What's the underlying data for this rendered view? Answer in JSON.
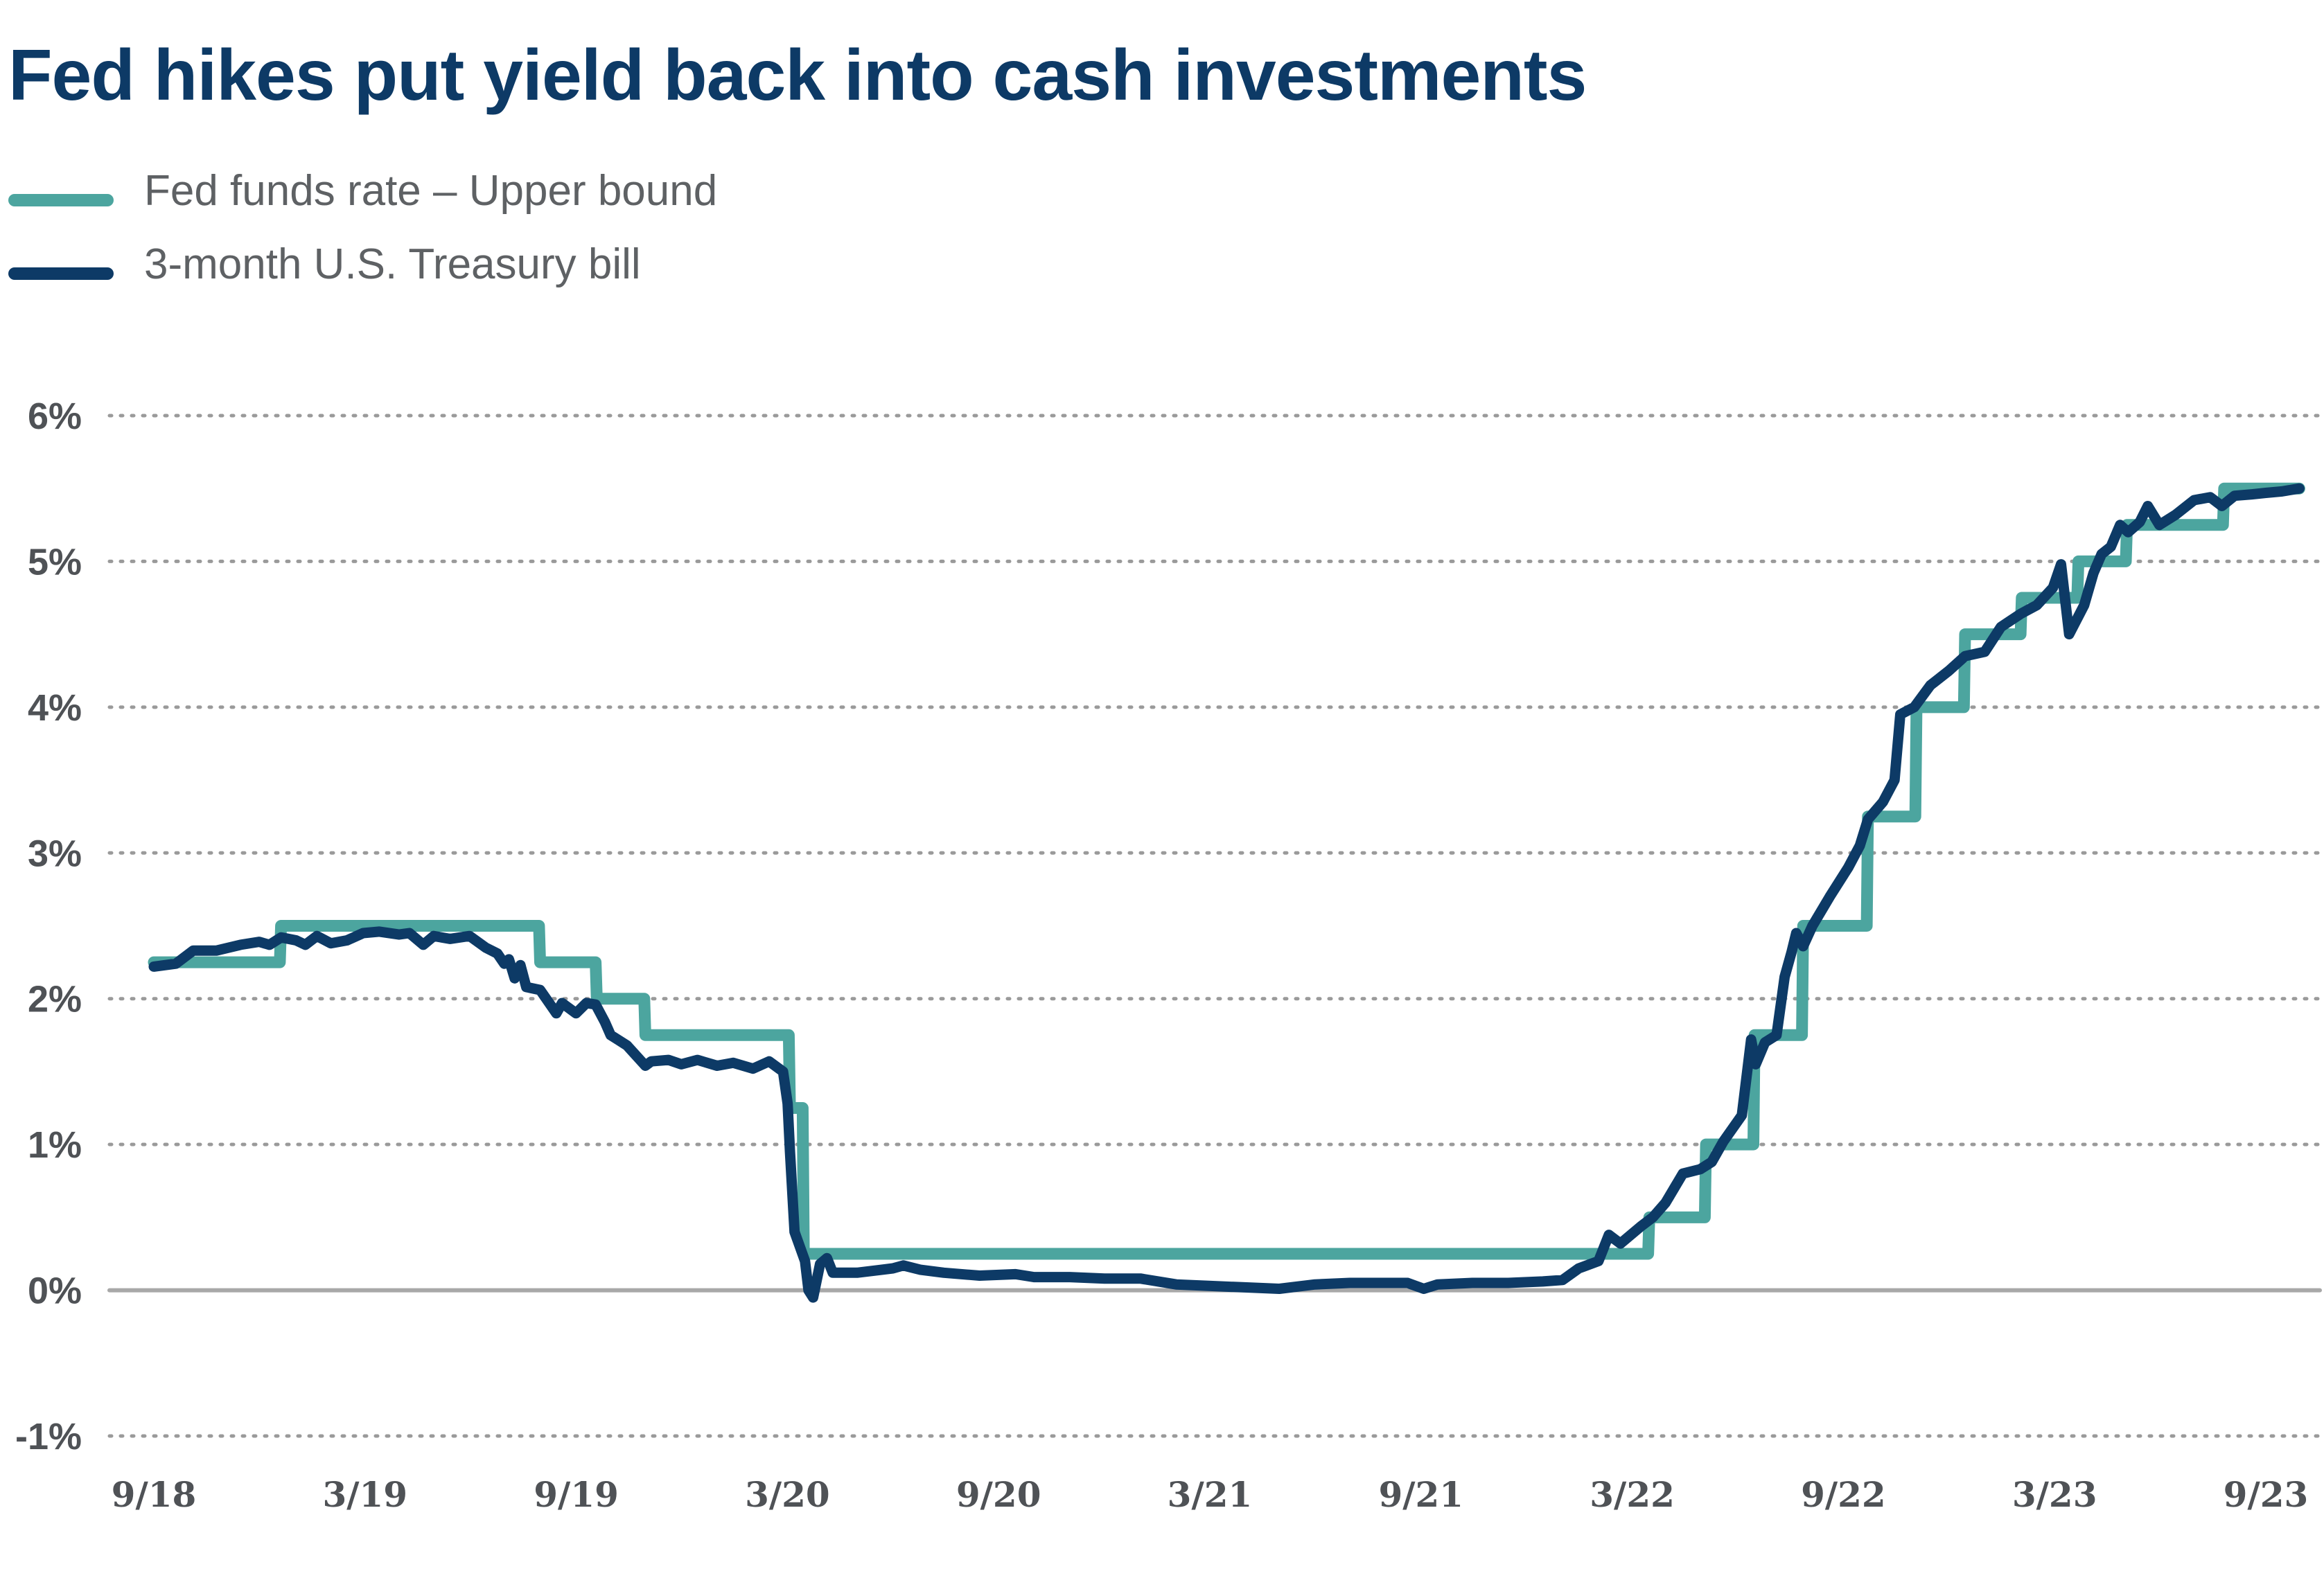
{
  "chart_data": {
    "type": "line",
    "title": "Fed hikes put yield back into cash investments",
    "xlabel": "",
    "ylabel": "",
    "ylim": [
      -1,
      6
    ],
    "grid": true,
    "legend_position": "top-left",
    "y_ticks": [
      "6%",
      "5%",
      "4%",
      "3%",
      "2%",
      "1%",
      "0%",
      "-1%"
    ],
    "x_ticks": [
      "9/18",
      "3/19",
      "9/19",
      "3/20",
      "9/20",
      "3/21",
      "9/21",
      "3/22",
      "9/22",
      "3/23",
      "9/23"
    ],
    "colors": {
      "fed_funds": "#4ca59f",
      "tbill": "#0d3a66",
      "grid": "#9a9a9a",
      "zero_line": "#a8a8a8"
    },
    "series": [
      {
        "name": "Fed funds rate – Upper bound",
        "color": "#4ca59f",
        "points": [
          [
            "2018-09-01",
            2.25
          ],
          [
            "2018-12-19",
            2.25
          ],
          [
            "2018-12-20",
            2.5
          ],
          [
            "2019-07-31",
            2.5
          ],
          [
            "2019-08-01",
            2.25
          ],
          [
            "2019-09-18",
            2.25
          ],
          [
            "2019-09-19",
            2.0
          ],
          [
            "2019-10-30",
            2.0
          ],
          [
            "2019-10-31",
            1.75
          ],
          [
            "2020-03-03",
            1.75
          ],
          [
            "2020-03-04",
            1.25
          ],
          [
            "2020-03-15",
            1.25
          ],
          [
            "2020-03-16",
            0.25
          ],
          [
            "2022-03-16",
            0.25
          ],
          [
            "2022-03-17",
            0.5
          ],
          [
            "2022-05-04",
            0.5
          ],
          [
            "2022-05-05",
            1.0
          ],
          [
            "2022-06-15",
            1.0
          ],
          [
            "2022-06-16",
            1.75
          ],
          [
            "2022-07-27",
            1.75
          ],
          [
            "2022-07-28",
            2.5
          ],
          [
            "2022-09-21",
            2.5
          ],
          [
            "2022-09-22",
            3.25
          ],
          [
            "2022-11-02",
            3.25
          ],
          [
            "2022-11-03",
            4.0
          ],
          [
            "2022-12-14",
            4.0
          ],
          [
            "2022-12-15",
            4.5
          ],
          [
            "2023-02-01",
            4.5
          ],
          [
            "2023-02-02",
            4.75
          ],
          [
            "2023-03-22",
            4.75
          ],
          [
            "2023-03-23",
            5.0
          ],
          [
            "2023-05-03",
            5.0
          ],
          [
            "2023-05-04",
            5.25
          ],
          [
            "2023-07-26",
            5.25
          ],
          [
            "2023-07-27",
            5.5
          ],
          [
            "2023-09-30",
            5.5
          ]
        ]
      },
      {
        "name": "3-month U.S. Treasury bill",
        "color": "#0d3a66",
        "points": [
          [
            "2018-09-01",
            2.22
          ],
          [
            "2018-09-20",
            2.24
          ],
          [
            "2018-10-05",
            2.33
          ],
          [
            "2018-10-25",
            2.33
          ],
          [
            "2018-11-15",
            2.37
          ],
          [
            "2018-12-01",
            2.39
          ],
          [
            "2018-12-10",
            2.37
          ],
          [
            "2018-12-20",
            2.42
          ],
          [
            "2019-01-02",
            2.4
          ],
          [
            "2019-01-10",
            2.37
          ],
          [
            "2019-01-20",
            2.43
          ],
          [
            "2019-02-01",
            2.38
          ],
          [
            "2019-02-15",
            2.4
          ],
          [
            "2019-03-01",
            2.45
          ],
          [
            "2019-03-15",
            2.46
          ],
          [
            "2019-04-01",
            2.44
          ],
          [
            "2019-04-10",
            2.45
          ],
          [
            "2019-04-22",
            2.37
          ],
          [
            "2019-05-01",
            2.43
          ],
          [
            "2019-05-15",
            2.41
          ],
          [
            "2019-06-01",
            2.43
          ],
          [
            "2019-06-15",
            2.35
          ],
          [
            "2019-06-25",
            2.31
          ],
          [
            "2019-07-01",
            2.24
          ],
          [
            "2019-07-05",
            2.27
          ],
          [
            "2019-07-10",
            2.14
          ],
          [
            "2019-07-15",
            2.23
          ],
          [
            "2019-07-20",
            2.08
          ],
          [
            "2019-08-01",
            2.06
          ],
          [
            "2019-08-15",
            1.9
          ],
          [
            "2019-08-20",
            1.97
          ],
          [
            "2019-09-01",
            1.9
          ],
          [
            "2019-09-10",
            1.97
          ],
          [
            "2019-09-18",
            1.96
          ],
          [
            "2019-09-26",
            1.84
          ],
          [
            "2019-10-01",
            1.75
          ],
          [
            "2019-10-15",
            1.68
          ],
          [
            "2019-10-31",
            1.54
          ],
          [
            "2019-11-05",
            1.57
          ],
          [
            "2019-11-20",
            1.58
          ],
          [
            "2019-12-01",
            1.55
          ],
          [
            "2019-12-15",
            1.58
          ],
          [
            "2020-01-01",
            1.54
          ],
          [
            "2020-01-15",
            1.56
          ],
          [
            "2020-02-01",
            1.52
          ],
          [
            "2020-02-15",
            1.57
          ],
          [
            "2020-02-27",
            1.5
          ],
          [
            "2020-03-02",
            1.28
          ],
          [
            "2020-03-04",
            0.95
          ],
          [
            "2020-03-08",
            0.4
          ],
          [
            "2020-03-17",
            0.2
          ],
          [
            "2020-03-20",
            0.0
          ],
          [
            "2020-03-24",
            -0.05
          ],
          [
            "2020-03-30",
            0.18
          ],
          [
            "2020-04-05",
            0.22
          ],
          [
            "2020-04-10",
            0.12
          ],
          [
            "2020-05-01",
            0.12
          ],
          [
            "2020-06-01",
            0.15
          ],
          [
            "2020-06-10",
            0.17
          ],
          [
            "2020-06-25",
            0.14
          ],
          [
            "2020-07-15",
            0.12
          ],
          [
            "2020-08-15",
            0.1
          ],
          [
            "2020-09-15",
            0.11
          ],
          [
            "2020-10-01",
            0.09
          ],
          [
            "2020-11-01",
            0.09
          ],
          [
            "2020-12-01",
            0.08
          ],
          [
            "2021-01-01",
            0.08
          ],
          [
            "2021-02-01",
            0.04
          ],
          [
            "2021-03-01",
            0.03
          ],
          [
            "2021-04-01",
            0.02
          ],
          [
            "2021-05-01",
            0.01
          ],
          [
            "2021-06-01",
            0.04
          ],
          [
            "2021-07-01",
            0.05
          ],
          [
            "2021-08-01",
            0.05
          ],
          [
            "2021-08-20",
            0.05
          ],
          [
            "2021-09-03",
            0.01
          ],
          [
            "2021-09-15",
            0.04
          ],
          [
            "2021-10-15",
            0.05
          ],
          [
            "2021-11-15",
            0.05
          ],
          [
            "2021-12-15",
            0.06
          ],
          [
            "2022-01-01",
            0.07
          ],
          [
            "2022-01-15",
            0.15
          ],
          [
            "2022-02-01",
            0.2
          ],
          [
            "2022-02-10",
            0.38
          ],
          [
            "2022-02-20",
            0.32
          ],
          [
            "2022-03-10",
            0.44
          ],
          [
            "2022-03-20",
            0.5
          ],
          [
            "2022-03-31",
            0.6
          ],
          [
            "2022-04-15",
            0.8
          ],
          [
            "2022-04-30",
            0.83
          ],
          [
            "2022-05-10",
            0.88
          ],
          [
            "2022-05-20",
            1.02
          ],
          [
            "2022-06-05",
            1.2
          ],
          [
            "2022-06-13",
            1.72
          ],
          [
            "2022-06-17",
            1.55
          ],
          [
            "2022-06-25",
            1.7
          ],
          [
            "2022-07-05",
            1.75
          ],
          [
            "2022-07-12",
            2.15
          ],
          [
            "2022-07-18",
            2.32
          ],
          [
            "2022-07-22",
            2.45
          ],
          [
            "2022-07-28",
            2.36
          ],
          [
            "2022-08-05",
            2.5
          ],
          [
            "2022-08-20",
            2.7
          ],
          [
            "2022-09-05",
            2.9
          ],
          [
            "2022-09-15",
            3.05
          ],
          [
            "2022-09-22",
            3.23
          ],
          [
            "2022-10-05",
            3.35
          ],
          [
            "2022-10-15",
            3.5
          ],
          [
            "2022-10-20",
            3.95
          ],
          [
            "2022-11-01",
            4.0
          ],
          [
            "2022-11-15",
            4.15
          ],
          [
            "2022-12-01",
            4.25
          ],
          [
            "2022-12-15",
            4.35
          ],
          [
            "2023-01-01",
            4.38
          ],
          [
            "2023-01-15",
            4.55
          ],
          [
            "2023-02-01",
            4.64
          ],
          [
            "2023-02-15",
            4.7
          ],
          [
            "2023-03-01",
            4.82
          ],
          [
            "2023-03-08",
            4.98
          ],
          [
            "2023-03-15",
            4.5
          ],
          [
            "2023-03-28",
            4.7
          ],
          [
            "2023-04-05",
            4.92
          ],
          [
            "2023-04-12",
            5.05
          ],
          [
            "2023-04-20",
            5.1
          ],
          [
            "2023-04-28",
            5.25
          ],
          [
            "2023-05-05",
            5.2
          ],
          [
            "2023-05-15",
            5.27
          ],
          [
            "2023-05-22",
            5.38
          ],
          [
            "2023-06-01",
            5.25
          ],
          [
            "2023-06-15",
            5.32
          ],
          [
            "2023-07-01",
            5.42
          ],
          [
            "2023-07-15",
            5.44
          ],
          [
            "2023-07-25",
            5.38
          ],
          [
            "2023-08-05",
            5.45
          ],
          [
            "2023-08-20",
            5.46
          ],
          [
            "2023-09-01",
            5.47
          ],
          [
            "2023-09-15",
            5.48
          ],
          [
            "2023-09-30",
            5.5
          ]
        ]
      }
    ]
  }
}
